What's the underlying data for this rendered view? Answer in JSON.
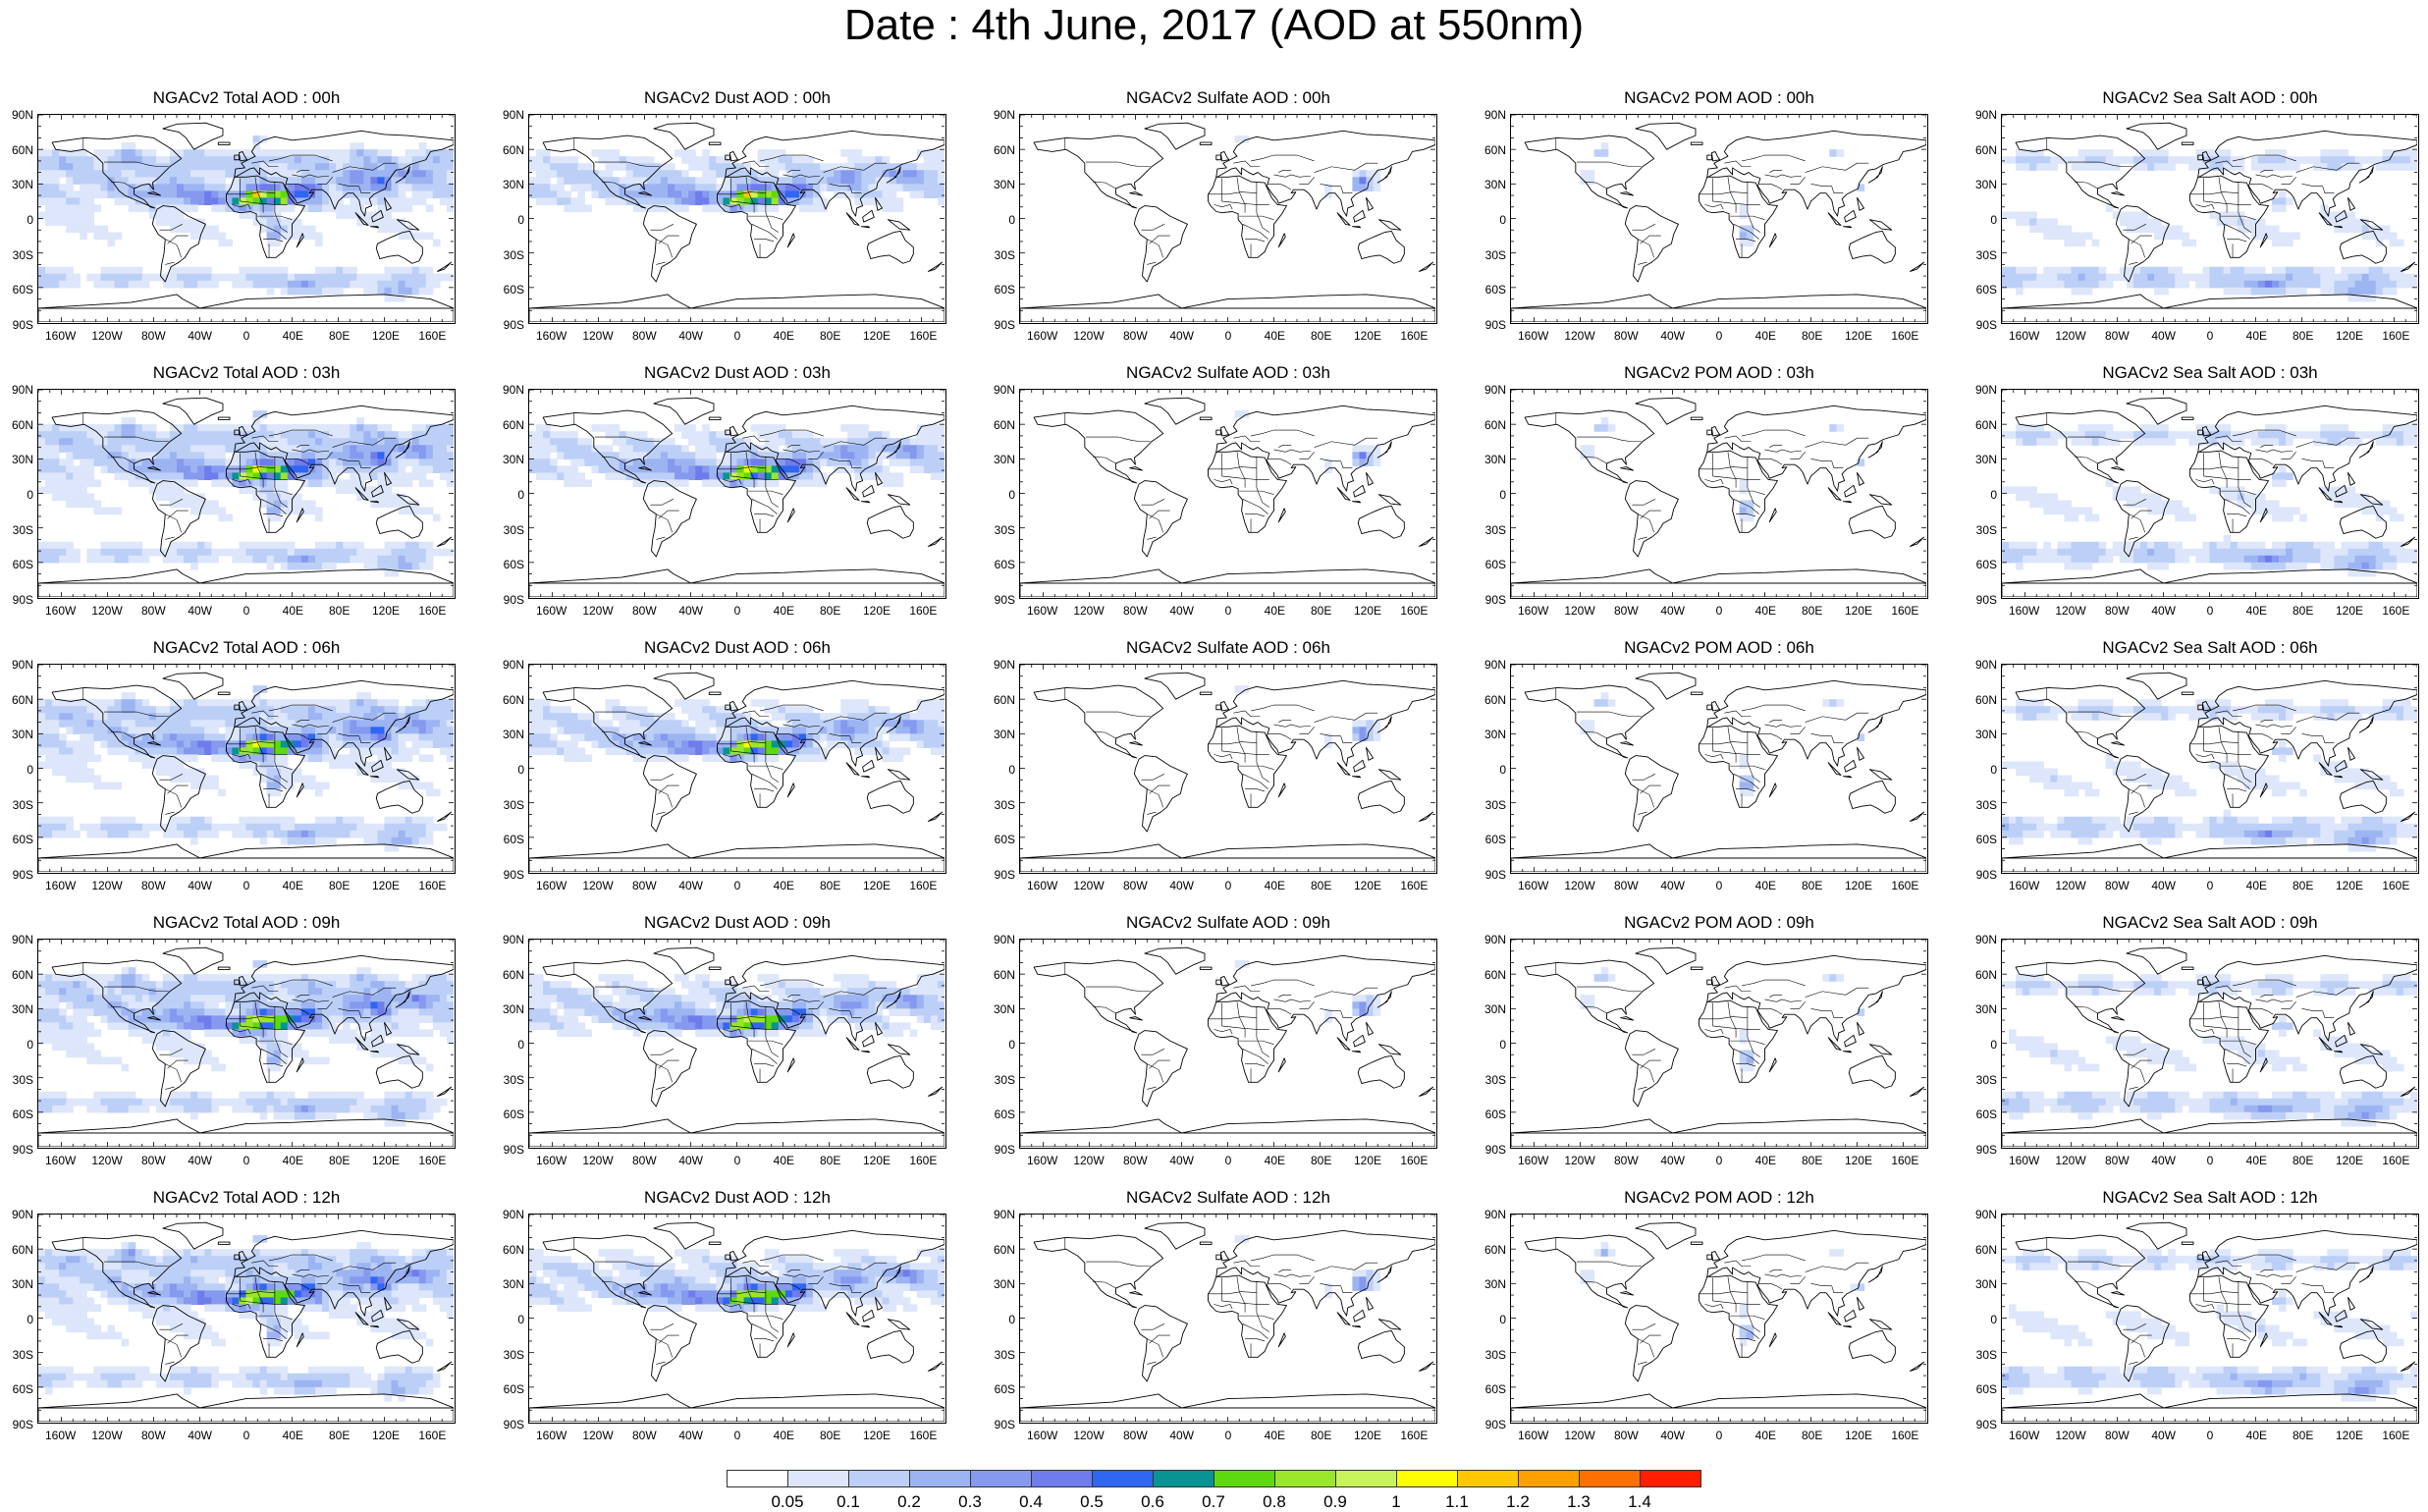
{
  "title": "Date : 4th June, 2017 (AOD at 550nm)",
  "lat_labels": [
    "90N",
    "60N",
    "30N",
    "0",
    "30S",
    "60S",
    "90S"
  ],
  "lon_labels": [
    "160W",
    "120W",
    "80W",
    "40W",
    "0",
    "40E",
    "80E",
    "120E",
    "160E"
  ],
  "columns": [
    {
      "species": "total",
      "titles": [
        "NGACv2 Total AOD : 00h",
        "NGACv2 Total AOD : 03h",
        "NGACv2 Total AOD : 06h",
        "NGACv2 Total AOD : 09h",
        "NGACv2 Total AOD : 12h"
      ]
    },
    {
      "species": "dust",
      "titles": [
        "NGACv2 Dust AOD : 00h",
        "NGACv2 Dust AOD : 03h",
        "NGACv2 Dust AOD : 06h",
        "NGACv2 Dust AOD : 09h",
        "NGACv2 Dust AOD : 12h"
      ]
    },
    {
      "species": "sulfate",
      "titles": [
        "NGACv2 Sulfate AOD : 00h",
        "NGACv2 Sulfate AOD : 03h",
        "NGACv2 Sulfate AOD : 06h",
        "NGACv2 Sulfate AOD : 09h",
        "NGACv2 Sulfate AOD : 12h"
      ]
    },
    {
      "species": "pom",
      "titles": [
        "NGACv2 POM AOD : 00h",
        "NGACv2 POM AOD : 03h",
        "NGACv2 POM AOD : 06h",
        "NGACv2 POM AOD : 09h",
        "NGACv2 POM  AOD : 12h"
      ]
    },
    {
      "species": "seasalt",
      "titles": [
        "NGACv2 Sea Salt AOD : 00h",
        "NGACv2 Sea Salt AOD : 03h",
        "NGACv2 Sea Salt AOD : 06h",
        "NGACv2 Sea Salt  AOD : 09h",
        "NGACv2 Sea Salt AOD : 12h"
      ]
    }
  ],
  "colorbar": {
    "colors": [
      "#ffffff",
      "#dde6fb",
      "#bccff7",
      "#9db4f2",
      "#8599ef",
      "#6f7cec",
      "#2f66f2",
      "#079493",
      "#5ed90f",
      "#99e62a",
      "#c9f35b",
      "#ffff00",
      "#ffc800",
      "#ffa000",
      "#ff7000",
      "#ff1e00"
    ],
    "tick_labels": [
      "0.05",
      "0.1",
      "0.2",
      "0.3",
      "0.4",
      "0.5",
      "0.6",
      "0.7",
      "0.8",
      "0.9",
      "1",
      "1.1",
      "1.2",
      "1.3",
      "1.4"
    ]
  }
}
